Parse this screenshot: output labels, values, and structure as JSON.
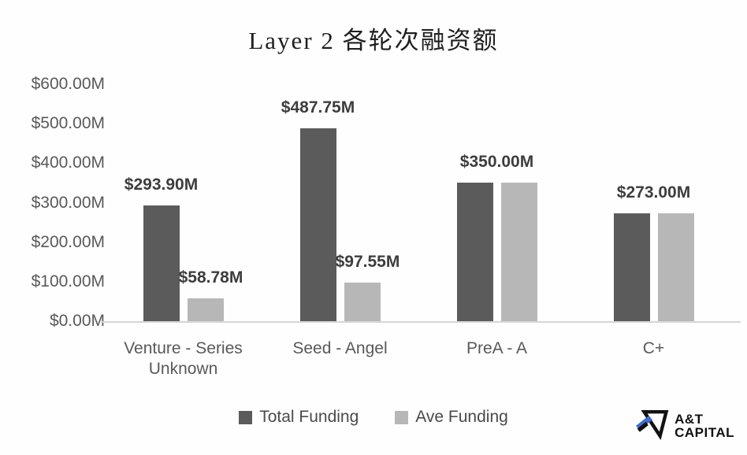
{
  "title": "Layer 2 各轮次融资额",
  "chart_data": {
    "type": "bar",
    "title": "Layer 2 各轮次融资额",
    "categories": [
      "Venture - Series Unknown",
      "Seed - Angel",
      "PreA - A",
      "C+"
    ],
    "series": [
      {
        "name": "Total Funding",
        "color": "#5b5b5b",
        "values": [
          293.9,
          487.75,
          350.0,
          273.0
        ],
        "labels": [
          "$293.90M",
          "$487.75M",
          "$350.00M",
          "$273.00M"
        ]
      },
      {
        "name": "Ave Funding",
        "color": "#b7b7b7",
        "values": [
          58.78,
          97.55,
          350.0,
          273.0
        ],
        "labels": [
          "$58.78M",
          "$97.55M",
          "$350.00M",
          "$273.00M"
        ]
      }
    ],
    "y_ticks": [
      {
        "value": 600,
        "label": "$600.00M"
      },
      {
        "value": 500,
        "label": "$500.00M"
      },
      {
        "value": 400,
        "label": "$400.00M"
      },
      {
        "value": 300,
        "label": "$300.00M"
      },
      {
        "value": 200,
        "label": "$200.00M"
      },
      {
        "value": 100,
        "label": "$100.00M"
      },
      {
        "value": 0,
        "label": "$0.00M"
      }
    ],
    "ylim": [
      0,
      600
    ],
    "xlabel": "",
    "ylabel": "",
    "grid": false,
    "legend_position": "bottom"
  },
  "colors": {
    "total_funding": "#5b5b5b",
    "ave_funding": "#b7b7b7",
    "axis_text": "#595959",
    "baseline": "#d6d6d6",
    "logo_blue": "#3e6ed0",
    "logo_black": "#121212"
  },
  "logo": {
    "line1": "A&T",
    "line2": "CAPITAL"
  }
}
